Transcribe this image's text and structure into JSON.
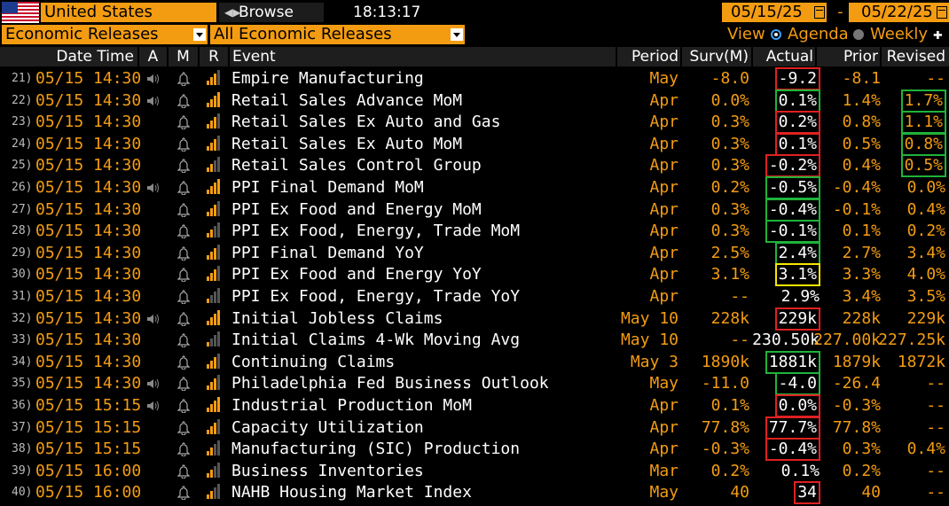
{
  "top": {
    "country": "United States",
    "browse": "Browse",
    "time": "18:13:17",
    "date_from": "05/15/25",
    "date_sep": "-",
    "date_to": "05/22/25"
  },
  "filters": {
    "category": "Economic Releases",
    "subcategory": "All Economic Releases",
    "view_label": "View",
    "agenda": "Agenda",
    "weekly": "Weekly"
  },
  "columns": {
    "datetime": "Date Time",
    "a": "A",
    "m": "M",
    "r": "R",
    "event": "Event",
    "period": "Period",
    "surv": "Surv(M)",
    "actual": "Actual",
    "prior": "Prior",
    "revised": "Revised"
  },
  "colors": {
    "accent": "#f39c12",
    "beat": "#1fb33a",
    "miss": "#e02020",
    "inline": "#f7e600"
  },
  "rows": [
    {
      "idx": "21)",
      "dt": "05/15 14:30",
      "speaker": true,
      "bars": 3,
      "event": "Empire Manufacturing",
      "period": "May",
      "surv": "-8.0",
      "actual": "-9.2",
      "actual_box": "red",
      "prior": "-8.1",
      "revised": "--",
      "revised_box": ""
    },
    {
      "idx": "22)",
      "dt": "05/15 14:30",
      "speaker": true,
      "bars": 4,
      "event": "Retail Sales Advance MoM",
      "period": "Apr",
      "surv": "0.0%",
      "actual": "0.1%",
      "actual_box": "green",
      "prior": "1.4%",
      "revised": "1.7%",
      "revised_box": "green"
    },
    {
      "idx": "23)",
      "dt": "05/15 14:30",
      "speaker": false,
      "bars": 3,
      "event": "Retail Sales Ex Auto and Gas",
      "period": "Apr",
      "surv": "0.3%",
      "actual": "0.2%",
      "actual_box": "red",
      "prior": "0.8%",
      "revised": "1.1%",
      "revised_box": "green"
    },
    {
      "idx": "24)",
      "dt": "05/15 14:30",
      "speaker": false,
      "bars": 3,
      "event": "Retail Sales Ex Auto MoM",
      "period": "Apr",
      "surv": "0.3%",
      "actual": "0.1%",
      "actual_box": "red",
      "prior": "0.5%",
      "revised": "0.8%",
      "revised_box": "green"
    },
    {
      "idx": "25)",
      "dt": "05/15 14:30",
      "speaker": false,
      "bars": 2,
      "event": "Retail Sales Control Group",
      "period": "Apr",
      "surv": "0.3%",
      "actual": "-0.2%",
      "actual_box": "red",
      "prior": "0.4%",
      "revised": "0.5%",
      "revised_box": "green"
    },
    {
      "idx": "26)",
      "dt": "05/15 14:30",
      "speaker": true,
      "bars": 4,
      "event": "PPI Final Demand MoM",
      "period": "Apr",
      "surv": "0.2%",
      "actual": "-0.5%",
      "actual_box": "green",
      "prior": "-0.4%",
      "revised": "0.0%",
      "revised_box": ""
    },
    {
      "idx": "27)",
      "dt": "05/15 14:30",
      "speaker": false,
      "bars": 3,
      "event": "PPI Ex Food and Energy MoM",
      "period": "Apr",
      "surv": "0.3%",
      "actual": "-0.4%",
      "actual_box": "green",
      "prior": "-0.1%",
      "revised": "0.4%",
      "revised_box": ""
    },
    {
      "idx": "28)",
      "dt": "05/15 14:30",
      "speaker": false,
      "bars": 2,
      "event": "PPI Ex Food, Energy, Trade MoM",
      "period": "Apr",
      "surv": "0.3%",
      "actual": "-0.1%",
      "actual_box": "green",
      "prior": "0.1%",
      "revised": "0.2%",
      "revised_box": ""
    },
    {
      "idx": "29)",
      "dt": "05/15 14:30",
      "speaker": false,
      "bars": 3,
      "event": "PPI Final Demand YoY",
      "period": "Apr",
      "surv": "2.5%",
      "actual": "2.4%",
      "actual_box": "green",
      "prior": "2.7%",
      "revised": "3.4%",
      "revised_box": ""
    },
    {
      "idx": "30)",
      "dt": "05/15 14:30",
      "speaker": false,
      "bars": 3,
      "event": "PPI Ex Food and Energy YoY",
      "period": "Apr",
      "surv": "3.1%",
      "actual": "3.1%",
      "actual_box": "yellow",
      "prior": "3.3%",
      "revised": "4.0%",
      "revised_box": ""
    },
    {
      "idx": "31)",
      "dt": "05/15 14:30",
      "speaker": false,
      "bars": 1,
      "event": "PPI Ex Food, Energy, Trade YoY",
      "period": "Apr",
      "surv": "--",
      "actual": "2.9%",
      "actual_box": "",
      "prior": "3.4%",
      "revised": "3.5%",
      "revised_box": ""
    },
    {
      "idx": "32)",
      "dt": "05/15 14:30",
      "speaker": true,
      "bars": 4,
      "event": "Initial Jobless Claims",
      "period": "May 10",
      "surv": "228k",
      "actual": "229k",
      "actual_box": "red",
      "prior": "228k",
      "revised": "229k",
      "revised_box": ""
    },
    {
      "idx": "33)",
      "dt": "05/15 14:30",
      "speaker": false,
      "bars": 1,
      "event": "Initial Claims 4-Wk Moving Avg",
      "period": "May 10",
      "surv": "--",
      "actual": "230.50k",
      "actual_box": "",
      "prior": "227.00k",
      "revised": "227.25k",
      "revised_box": ""
    },
    {
      "idx": "34)",
      "dt": "05/15 14:30",
      "speaker": false,
      "bars": 3,
      "event": "Continuing Claims",
      "period": "May 3",
      "surv": "1890k",
      "actual": "1881k",
      "actual_box": "green",
      "prior": "1879k",
      "revised": "1872k",
      "revised_box": ""
    },
    {
      "idx": "35)",
      "dt": "05/15 14:30",
      "speaker": true,
      "bars": 3,
      "event": "Philadelphia Fed Business Outlook",
      "period": "May",
      "surv": "-11.0",
      "actual": "-4.0",
      "actual_box": "green",
      "prior": "-26.4",
      "revised": "--",
      "revised_box": ""
    },
    {
      "idx": "36)",
      "dt": "05/15 15:15",
      "speaker": true,
      "bars": 4,
      "event": "Industrial Production MoM",
      "period": "Apr",
      "surv": "0.1%",
      "actual": "0.0%",
      "actual_box": "red",
      "prior": "-0.3%",
      "revised": "--",
      "revised_box": ""
    },
    {
      "idx": "37)",
      "dt": "05/15 15:15",
      "speaker": false,
      "bars": 3,
      "event": "Capacity Utilization",
      "period": "Apr",
      "surv": "77.8%",
      "actual": "77.7%",
      "actual_box": "red",
      "prior": "77.8%",
      "revised": "--",
      "revised_box": ""
    },
    {
      "idx": "38)",
      "dt": "05/15 15:15",
      "speaker": false,
      "bars": 2,
      "event": "Manufacturing (SIC) Production",
      "period": "Apr",
      "surv": "-0.3%",
      "actual": "-0.4%",
      "actual_box": "red",
      "prior": "0.3%",
      "revised": "0.4%",
      "revised_box": ""
    },
    {
      "idx": "39)",
      "dt": "05/15 16:00",
      "speaker": false,
      "bars": 2,
      "event": "Business Inventories",
      "period": "Mar",
      "surv": "0.2%",
      "actual": "0.1%",
      "actual_box": "",
      "prior": "0.2%",
      "revised": "--",
      "revised_box": ""
    },
    {
      "idx": "40)",
      "dt": "05/15 16:00",
      "speaker": false,
      "bars": 2,
      "event": "NAHB Housing Market Index",
      "period": "May",
      "surv": "40",
      "actual": "34",
      "actual_box": "red",
      "prior": "40",
      "revised": "--",
      "revised_box": ""
    }
  ]
}
